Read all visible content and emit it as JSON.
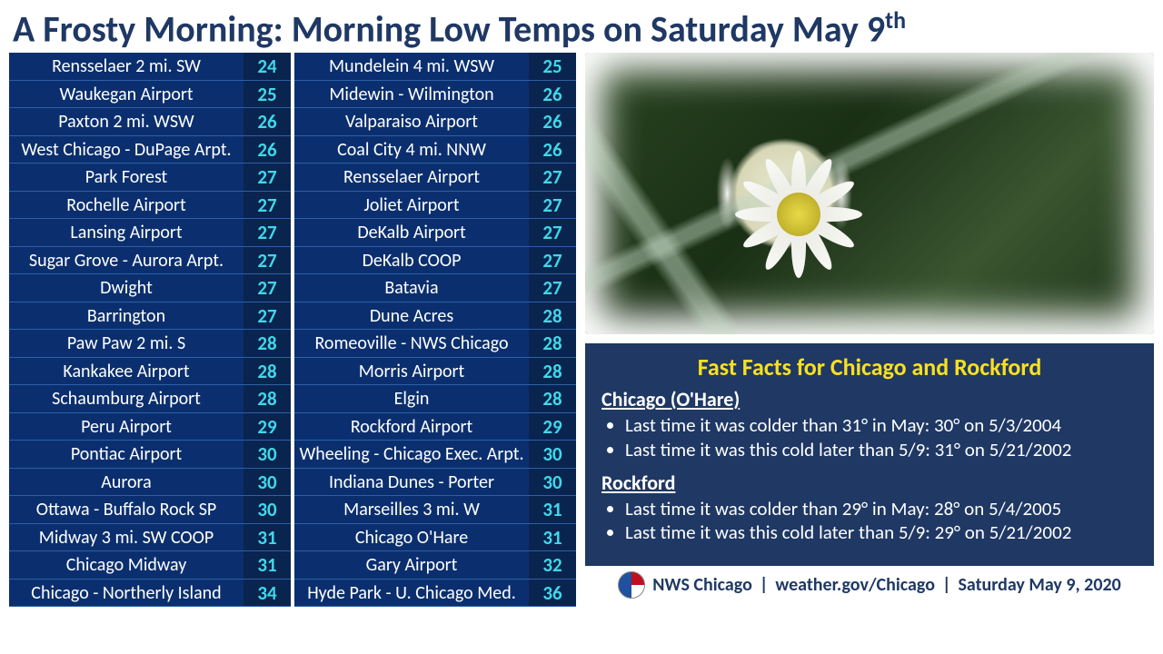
{
  "title_main": "A Frosty Morning: Morning Low Temps on Saturday May 9",
  "title_suffix": "th",
  "table": {
    "col1": [
      {
        "loc": "Rensselaer 2 mi. SW",
        "val": 24
      },
      {
        "loc": "Waukegan Airport",
        "val": 25
      },
      {
        "loc": "Paxton 2 mi. WSW",
        "val": 26
      },
      {
        "loc": "West Chicago - DuPage Arpt.",
        "val": 26
      },
      {
        "loc": "Park Forest",
        "val": 27
      },
      {
        "loc": "Rochelle Airport",
        "val": 27
      },
      {
        "loc": "Lansing Airport",
        "val": 27
      },
      {
        "loc": "Sugar Grove - Aurora Arpt.",
        "val": 27
      },
      {
        "loc": "Dwight",
        "val": 27
      },
      {
        "loc": "Barrington",
        "val": 27
      },
      {
        "loc": "Paw Paw 2 mi. S",
        "val": 28
      },
      {
        "loc": "Kankakee Airport",
        "val": 28
      },
      {
        "loc": "Schaumburg Airport",
        "val": 28
      },
      {
        "loc": "Peru Airport",
        "val": 29
      },
      {
        "loc": "Pontiac Airport",
        "val": 30
      },
      {
        "loc": "Aurora",
        "val": 30
      },
      {
        "loc": "Ottawa - Buffalo Rock SP",
        "val": 30
      },
      {
        "loc": "Midway 3 mi. SW COOP",
        "val": 31
      },
      {
        "loc": "Chicago Midway",
        "val": 31
      },
      {
        "loc": "Chicago - Northerly Island",
        "val": 34
      }
    ],
    "col2": [
      {
        "loc": "Mundelein 4 mi. WSW",
        "val": 25
      },
      {
        "loc": "Midewin - Wilmington",
        "val": 26
      },
      {
        "loc": "Valparaiso Airport",
        "val": 26
      },
      {
        "loc": "Coal City 4 mi. NNW",
        "val": 26
      },
      {
        "loc": "Rensselaer Airport",
        "val": 27
      },
      {
        "loc": "Joliet Airport",
        "val": 27
      },
      {
        "loc": "DeKalb Airport",
        "val": 27
      },
      {
        "loc": "DeKalb COOP",
        "val": 27
      },
      {
        "loc": "Batavia",
        "val": 27
      },
      {
        "loc": "Dune Acres",
        "val": 28
      },
      {
        "loc": "Romeoville - NWS Chicago",
        "val": 28
      },
      {
        "loc": "Morris Airport",
        "val": 28
      },
      {
        "loc": "Elgin",
        "val": 28
      },
      {
        "loc": "Rockford Airport",
        "val": 29
      },
      {
        "loc": "Wheeling - Chicago Exec. Arpt.",
        "val": 30
      },
      {
        "loc": "Indiana Dunes - Porter",
        "val": 30
      },
      {
        "loc": "Marseilles 3 mi. W",
        "val": 31
      },
      {
        "loc": "Chicago O'Hare",
        "val": 31
      },
      {
        "loc": "Gary Airport",
        "val": 32
      },
      {
        "loc": "Hyde Park - U. Chicago Med.",
        "val": 36
      }
    ]
  },
  "facts": {
    "title": "Fast Facts for Chicago and Rockford",
    "chicago_label": "Chicago (O'Hare)",
    "chicago": [
      "Last time it was colder than 31° in May: 30° on 5/3/2004",
      "Last time it was this cold later than 5/9: 31° on 5/21/2002"
    ],
    "rockford_label": "Rockford",
    "rockford": [
      "Last time it was colder than 29° in May: 28° on 5/4/2005",
      "Last time it was this cold later than 5/9: 29° on 5/21/2002"
    ]
  },
  "footer": {
    "org": "NWS Chicago",
    "url": "weather.gov/Chicago",
    "date": "Saturday May 9, 2020",
    "sep": " | "
  },
  "colors": {
    "title": "#1f3864",
    "row_bg": "#0b2f6e",
    "val_bg": "#0a2450",
    "val_color": "#40d8e8",
    "facts_bg": "#1f3864",
    "facts_title": "#f8e020"
  }
}
